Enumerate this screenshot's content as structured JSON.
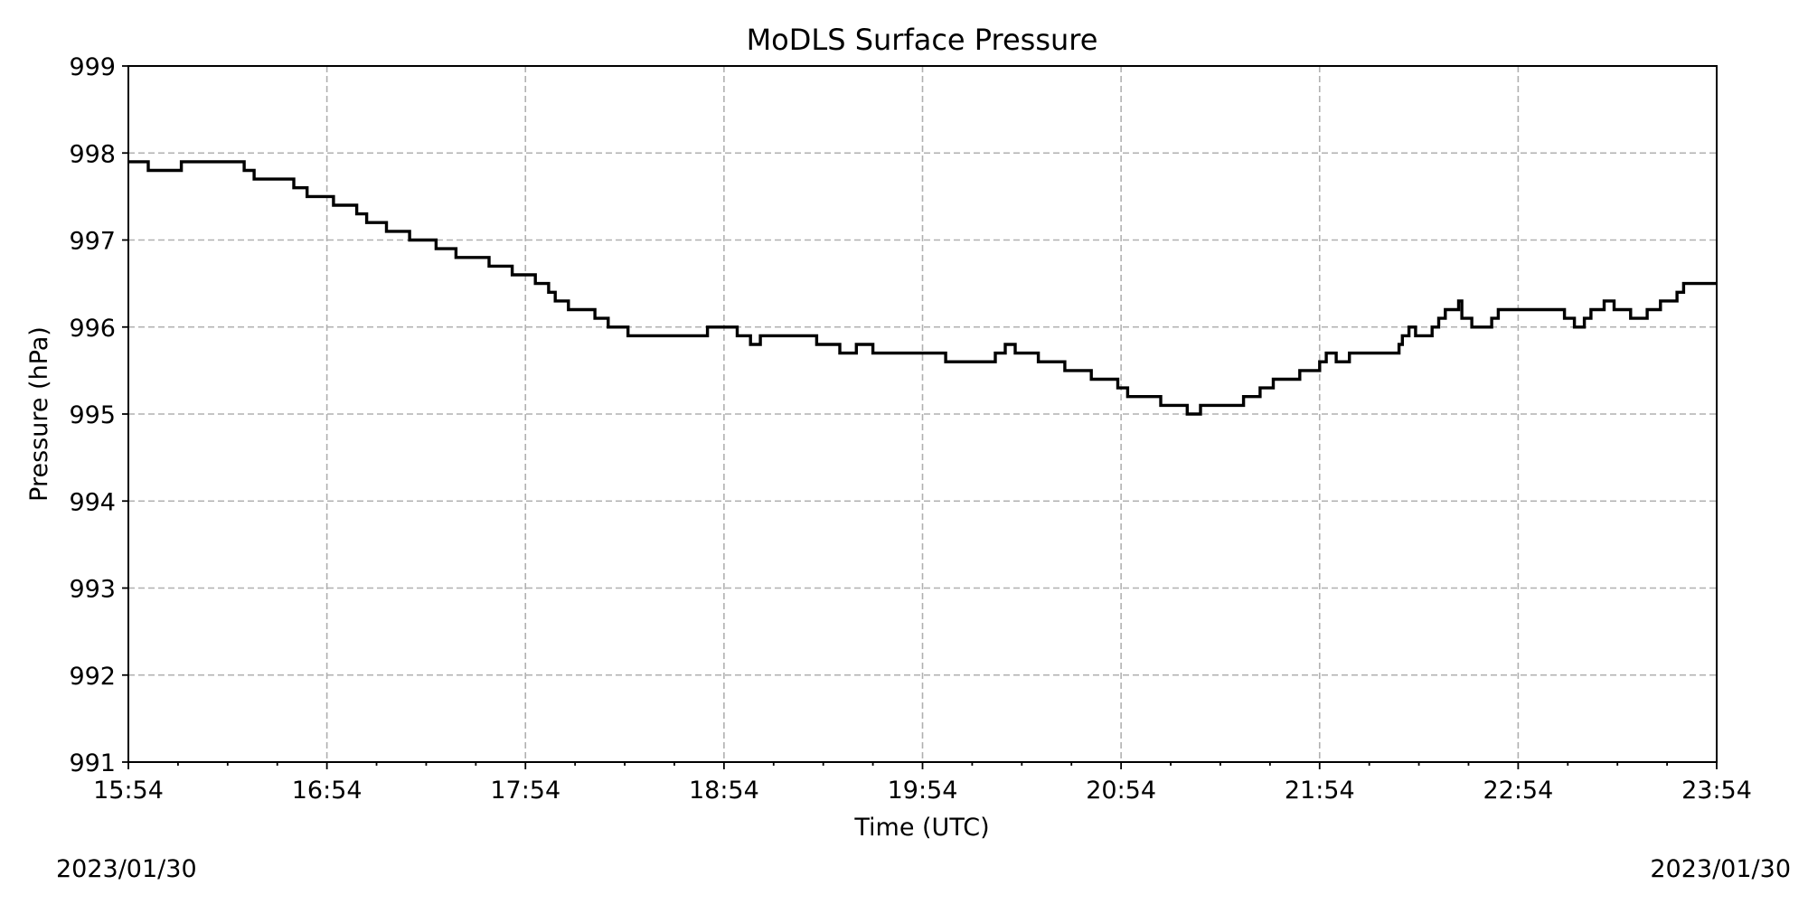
{
  "chart_data": {
    "type": "line",
    "title": "MoDLS Surface Pressure",
    "xlabel": "Time (UTC)",
    "ylabel": "Pressure (hPa)",
    "x_unit": "time of day (UTC)",
    "xlim": [
      "15:54",
      "23:54"
    ],
    "ylim": [
      991,
      999
    ],
    "x_ticks": [
      "15:54",
      "16:54",
      "17:54",
      "18:54",
      "19:54",
      "20:54",
      "21:54",
      "22:54",
      "23:54"
    ],
    "y_ticks": [
      991,
      992,
      993,
      994,
      995,
      996,
      997,
      998,
      999
    ],
    "grid": true,
    "step": "post",
    "footer_left": "2023/01/30",
    "footer_right": "2023/01/30",
    "series": [
      {
        "color": "#000000",
        "points": [
          [
            "15:54",
            997.9
          ],
          [
            "16:00",
            997.8
          ],
          [
            "16:10",
            997.9
          ],
          [
            "16:29",
            997.8
          ],
          [
            "16:32",
            997.7
          ],
          [
            "16:44",
            997.6
          ],
          [
            "16:48",
            997.5
          ],
          [
            "16:56",
            997.4
          ],
          [
            "17:03",
            997.3
          ],
          [
            "17:06",
            997.2
          ],
          [
            "17:12",
            997.1
          ],
          [
            "17:19",
            997.0
          ],
          [
            "17:27",
            996.9
          ],
          [
            "17:33",
            996.8
          ],
          [
            "17:43",
            996.7
          ],
          [
            "17:46",
            996.7
          ],
          [
            "17:50",
            996.6
          ],
          [
            "17:57",
            996.5
          ],
          [
            "18:01",
            996.4
          ],
          [
            "18:03",
            996.3
          ],
          [
            "18:07",
            996.2
          ],
          [
            "18:15",
            996.1
          ],
          [
            "18:19",
            996.0
          ],
          [
            "18:25",
            995.9
          ],
          [
            "18:49",
            996.0
          ],
          [
            "18:58",
            995.9
          ],
          [
            "19:02",
            995.8
          ],
          [
            "19:05",
            995.9
          ],
          [
            "19:22",
            995.8
          ],
          [
            "19:29",
            995.7
          ],
          [
            "19:34",
            995.8
          ],
          [
            "19:39",
            995.7
          ],
          [
            "19:55",
            995.7
          ],
          [
            "20:01",
            995.6
          ],
          [
            "20:16",
            995.7
          ],
          [
            "20:19",
            995.8
          ],
          [
            "20:22",
            995.7
          ],
          [
            "20:29",
            995.6
          ],
          [
            "20:37",
            995.5
          ],
          [
            "20:45",
            995.4
          ],
          [
            "20:53",
            995.3
          ],
          [
            "20:56",
            995.2
          ],
          [
            "21:06",
            995.1
          ],
          [
            "21:14",
            995.0
          ],
          [
            "21:18",
            995.1
          ],
          [
            "21:31",
            995.2
          ],
          [
            "21:36",
            995.3
          ],
          [
            "21:40",
            995.4
          ],
          [
            "21:48",
            995.5
          ],
          [
            "21:54",
            995.6
          ],
          [
            "21:56",
            995.7
          ],
          [
            "21:59",
            995.6
          ],
          [
            "22:03",
            995.7
          ],
          [
            "22:18",
            995.8
          ],
          [
            "22:19",
            995.9
          ],
          [
            "22:21",
            996.0
          ],
          [
            "22:23",
            995.9
          ],
          [
            "22:28",
            996.0
          ],
          [
            "22:30",
            996.1
          ],
          [
            "22:32",
            996.2
          ],
          [
            "22:36",
            996.3
          ],
          [
            "22:37",
            996.1
          ],
          [
            "22:40",
            996.0
          ],
          [
            "22:46",
            996.1
          ],
          [
            "22:48",
            996.2
          ],
          [
            "23:08",
            996.1
          ],
          [
            "23:11",
            996.0
          ],
          [
            "23:14",
            996.1
          ],
          [
            "23:16",
            996.2
          ],
          [
            "23:20",
            996.3
          ],
          [
            "23:23",
            996.2
          ],
          [
            "23:28",
            996.1
          ],
          [
            "23:33",
            996.2
          ],
          [
            "23:37",
            996.3
          ],
          [
            "23:42",
            996.4
          ],
          [
            "23:44",
            996.5
          ],
          [
            "23:54",
            996.5
          ]
        ]
      }
    ]
  }
}
